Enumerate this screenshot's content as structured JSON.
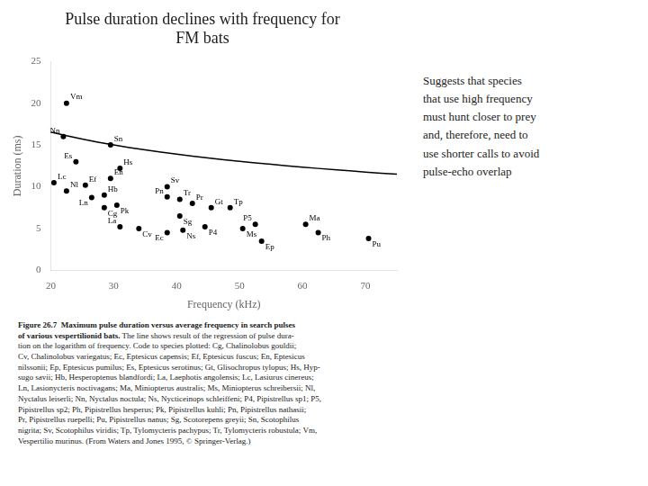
{
  "chart_data": {
    "type": "scatter",
    "title": [
      "Pulse duration declines with frequency for",
      "FM bats"
    ],
    "xlabel": "Frequency (kHz)",
    "ylabel": "Duration (ms)",
    "xlim": [
      20,
      75
    ],
    "ylim": [
      0,
      25
    ],
    "xticks": [
      20,
      30,
      40,
      50,
      60,
      70
    ],
    "yticks": [
      0,
      5,
      10,
      15,
      20,
      25
    ],
    "grid": false,
    "annotation": "Suggests that species\nthat use high frequency\nmust hunt closer to prey\nand, therefore, need to\nuse shorter calls to avoid\npulse-echo overlap",
    "caption_bold": "Figure 26.7  Maximum pulse duration versus average frequency in search pulses\nof various vespertilionid bats.",
    "caption": " The line shows result of the regression of pulse dura-\ntion on the logarithm of frequency. Code to species plotted: Cg, Chalinolobus gouldii;\nCv, Chalinolobus variegatus; Ec, Eptesicus capensis; Ef, Eptesicus fuscus; En, Eptesicus\nnilssonii; Ep, Eptesicus pumilus; Es, Eptesicus serotinus; Gt, Glisochropus tylopus; Hs, Hyp-\nsugo savii; Hb, Hesperoptenus blandfordi; La, Laephotis angolensis; Lc, Lasiurus cinereus;\nLn, Lasionycteris noctivagans; Ma, Miniopterus australis; Ms, Miniopterus schreibersii; Nl,\nNyctalus leiserli; Nn, Nyctalus noctula; Ns, Nycticeinops schleiffeni; P4, Pipistrellus sp1; P5,\nPipistrellus sp2; Ph, Pipistrellus hesperus; Pk, Pipistrellus kuhli; Pn, Pipistrellus nathasii;\nPr, Pipistrellus ruepelli; Pu, Pipistrellus nanus; Sg, Scotorepens greyii; Sn, Scotophilus\nnigrita; Sv, Scotophilus viridis; Tp, Tylomycteris pachypus; Tr, Tylomycteris robustula; Vm,\nVespertilio murinus. (From Waters and Jones 1995, © Springer-Verlag.)",
    "series": [
      {
        "type": "scatter",
        "color": "#000000",
        "marker": "circle",
        "x": [
          22.5,
          22.0,
          24.0,
          20.5,
          22.5,
          25.5,
          26.5,
          28.5,
          29.5,
          31.0,
          29.5,
          28.5,
          30.5,
          31.0,
          34.0,
          38.5,
          38.5,
          40.5,
          40.5,
          42.5,
          38.5,
          41.0,
          44.5,
          45.5,
          48.5,
          50.5,
          52.5,
          53.5,
          60.5,
          62.5,
          70.5
        ],
        "values": [
          20.0,
          16.0,
          13.0,
          10.5,
          9.5,
          10.2,
          8.7,
          9.0,
          15.0,
          12.2,
          11.0,
          7.5,
          7.8,
          5.2,
          5.0,
          8.8,
          10.0,
          6.5,
          8.5,
          8.0,
          4.5,
          4.8,
          5.2,
          7.5,
          7.5,
          5.0,
          5.5,
          3.5,
          5.5,
          4.5,
          3.8
        ],
        "labels": [
          "Vm",
          "Nn",
          "Es",
          "Lc",
          "Nl",
          "Ef",
          "Ln",
          "Hb",
          "Sn",
          "Hs",
          "En",
          "Cg",
          "Pk",
          "La",
          "Cv",
          "Pn",
          "Sv",
          "Sg",
          "Tr",
          "Pr",
          "Ec",
          "Ns",
          "P4",
          "Gt",
          "Tp",
          "Ms",
          "P5",
          "Ep",
          "Ma",
          "Ph",
          "Pu"
        ]
      },
      {
        "type": "line",
        "color": "#000000",
        "line_style": "solid",
        "x": [
          20,
          22.5,
          25,
          27.5,
          30,
          32.5,
          35,
          37.5,
          40,
          42.5,
          45,
          47.5,
          50,
          52.5,
          55,
          57.5,
          60,
          62.5,
          65,
          67.5,
          70,
          72.5,
          75
        ],
        "values": [
          16.551,
          16.101,
          15.698,
          15.334,
          15.001,
          14.695,
          14.412,
          14.149,
          13.902,
          13.67,
          13.452,
          13.245,
          13.049,
          12.863,
          12.685,
          12.515,
          12.352,
          12.196,
          12.046,
          11.902,
          11.763,
          11.629,
          11.499
        ]
      }
    ]
  }
}
